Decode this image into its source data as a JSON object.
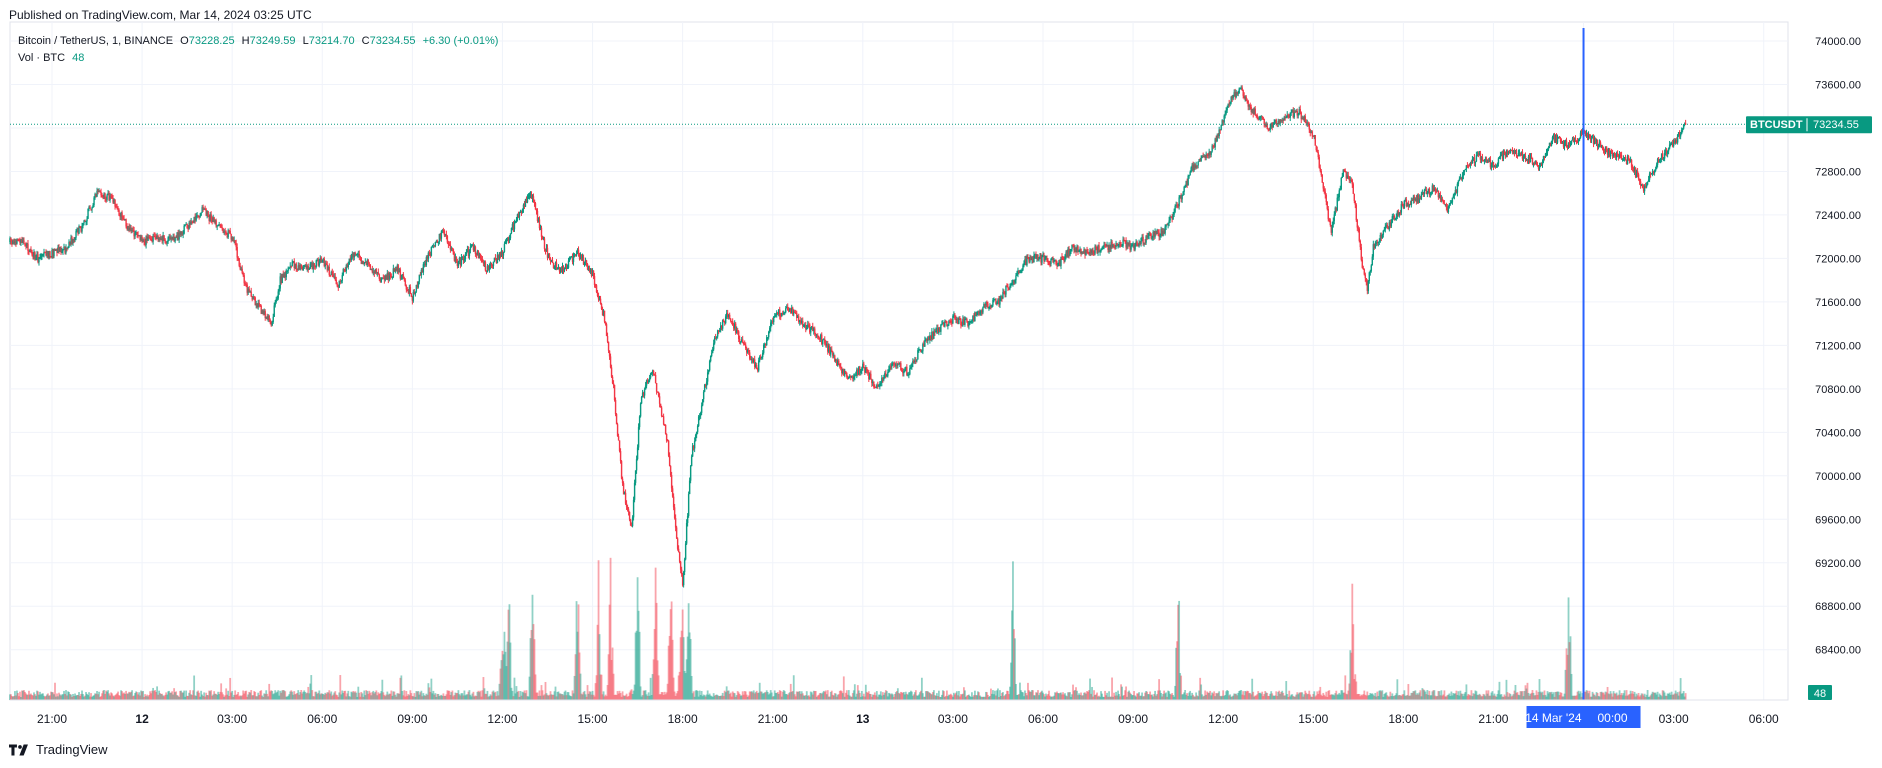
{
  "header": {
    "published_text": "Published on TradingView.com, Mar 14, 2024 03:25 UTC"
  },
  "legend": {
    "symbol": "Bitcoin / TetherUS, 1, BINANCE",
    "open_label": "O",
    "open": "73228.25",
    "high_label": "H",
    "high": "73249.59",
    "low_label": "L",
    "low": "73214.70",
    "close_label": "C",
    "close": "73234.55",
    "change": "+6.30 (+0.01%)",
    "volume_label": "Vol · BTC",
    "volume_value": "48"
  },
  "footer": {
    "brand": "TradingView"
  },
  "colors": {
    "up": "#089981",
    "down": "#f23645",
    "crosshair": "#2962ff",
    "grid": "#f0f3fa"
  },
  "chart_data": {
    "type": "candlestick",
    "symbol": "BTCUSDT",
    "interval": "1 minute",
    "ylim": [
      68100,
      74350
    ],
    "y_ticks": [
      74000,
      73600,
      73200,
      72800,
      72400,
      72000,
      71600,
      71200,
      70800,
      70400,
      70000,
      69600,
      69200,
      68800,
      68400
    ],
    "y_tick_labels": [
      "74000.00",
      "73600.00",
      "72800.00",
      "72400.00",
      "72000.00",
      "71600.00",
      "71200.00",
      "70800.00",
      "70400.00",
      "70000.00",
      "69600.00",
      "69200.00",
      "68800.00",
      "68400.00"
    ],
    "x_tick_labels": [
      "21:00",
      "12",
      "03:00",
      "06:00",
      "09:00",
      "12:00",
      "15:00",
      "18:00",
      "21:00",
      "13",
      "03:00",
      "06:00",
      "09:00",
      "12:00",
      "15:00",
      "18:00",
      "21:00",
      "00:00",
      "03:00",
      "06:00"
    ],
    "x_tick_hours": [
      0,
      3,
      6,
      9,
      12,
      15,
      18,
      21,
      24,
      27,
      30,
      33,
      36,
      39,
      42,
      45,
      48,
      51,
      54,
      57
    ],
    "x_start_hours_before_first_tick": 1.0,
    "last_data_hour": 54.42,
    "price_path": [
      [
        -1.0,
        72150
      ],
      [
        -0.5,
        72000
      ],
      [
        0.0,
        72050
      ],
      [
        0.5,
        72100
      ],
      [
        1.0,
        72300
      ],
      [
        1.5,
        72600
      ],
      [
        2.0,
        72550
      ],
      [
        2.5,
        72300
      ],
      [
        3.0,
        72150
      ],
      [
        3.5,
        72200
      ],
      [
        4.0,
        72150
      ],
      [
        4.5,
        72300
      ],
      [
        5.0,
        72450
      ],
      [
        5.5,
        72300
      ],
      [
        6.0,
        72200
      ],
      [
        6.5,
        71700
      ],
      [
        7.0,
        71500
      ],
      [
        7.3,
        71400
      ],
      [
        7.6,
        71800
      ],
      [
        8.0,
        71950
      ],
      [
        8.5,
        71900
      ],
      [
        9.0,
        72000
      ],
      [
        9.5,
        71750
      ],
      [
        10.0,
        72050
      ],
      [
        10.5,
        71950
      ],
      [
        11.0,
        71800
      ],
      [
        11.5,
        71900
      ],
      [
        12.0,
        71650
      ],
      [
        12.5,
        72000
      ],
      [
        13.0,
        72250
      ],
      [
        13.5,
        71950
      ],
      [
        14.0,
        72100
      ],
      [
        14.5,
        71900
      ],
      [
        15.0,
        72050
      ],
      [
        15.5,
        72400
      ],
      [
        16.0,
        72600
      ],
      [
        16.3,
        72200
      ],
      [
        16.6,
        71950
      ],
      [
        17.0,
        71900
      ],
      [
        17.5,
        72050
      ],
      [
        18.0,
        71850
      ],
      [
        18.4,
        71450
      ],
      [
        18.7,
        70800
      ],
      [
        19.0,
        69900
      ],
      [
        19.3,
        69500
      ],
      [
        19.6,
        70700
      ],
      [
        20.0,
        71000
      ],
      [
        20.5,
        70300
      ],
      [
        20.8,
        69400
      ],
      [
        21.0,
        69000
      ],
      [
        21.3,
        70200
      ],
      [
        21.6,
        70600
      ],
      [
        22.0,
        71200
      ],
      [
        22.5,
        71500
      ],
      [
        23.0,
        71200
      ],
      [
        23.5,
        71000
      ],
      [
        24.0,
        71450
      ],
      [
        24.5,
        71550
      ],
      [
        25.0,
        71400
      ],
      [
        25.5,
        71300
      ],
      [
        26.0,
        71100
      ],
      [
        26.5,
        70900
      ],
      [
        27.0,
        71000
      ],
      [
        27.5,
        70800
      ],
      [
        28.0,
        71050
      ],
      [
        28.5,
        70950
      ],
      [
        29.0,
        71200
      ],
      [
        29.5,
        71350
      ],
      [
        30.0,
        71450
      ],
      [
        30.5,
        71400
      ],
      [
        31.0,
        71550
      ],
      [
        31.5,
        71600
      ],
      [
        32.0,
        71800
      ],
      [
        32.5,
        72000
      ],
      [
        33.0,
        72000
      ],
      [
        33.5,
        71950
      ],
      [
        34.0,
        72100
      ],
      [
        34.5,
        72050
      ],
      [
        35.0,
        72100
      ],
      [
        35.5,
        72150
      ],
      [
        36.0,
        72100
      ],
      [
        36.5,
        72200
      ],
      [
        37.0,
        72250
      ],
      [
        37.5,
        72500
      ],
      [
        38.0,
        72850
      ],
      [
        38.5,
        72950
      ],
      [
        38.8,
        73100
      ],
      [
        39.2,
        73450
      ],
      [
        39.6,
        73550
      ],
      [
        40.0,
        73350
      ],
      [
        40.5,
        73200
      ],
      [
        41.0,
        73300
      ],
      [
        41.5,
        73350
      ],
      [
        42.0,
        73150
      ],
      [
        42.3,
        72700
      ],
      [
        42.6,
        72250
      ],
      [
        43.0,
        72800
      ],
      [
        43.3,
        72700
      ],
      [
        43.6,
        72000
      ],
      [
        43.8,
        71700
      ],
      [
        44.0,
        72100
      ],
      [
        44.5,
        72300
      ],
      [
        45.0,
        72500
      ],
      [
        45.5,
        72550
      ],
      [
        46.0,
        72650
      ],
      [
        46.5,
        72450
      ],
      [
        47.0,
        72800
      ],
      [
        47.5,
        72950
      ],
      [
        48.0,
        72850
      ],
      [
        48.5,
        73000
      ],
      [
        49.0,
        72950
      ],
      [
        49.5,
        72850
      ],
      [
        50.0,
        73100
      ],
      [
        50.5,
        73050
      ],
      [
        51.0,
        73150
      ],
      [
        51.5,
        73050
      ],
      [
        52.0,
        72950
      ],
      [
        52.5,
        72900
      ],
      [
        53.0,
        72650
      ],
      [
        53.5,
        72900
      ],
      [
        54.0,
        73050
      ],
      [
        54.42,
        73235
      ]
    ],
    "volume_spike_hours": [
      15.0,
      15.2,
      17.5,
      18.2,
      18.6,
      19.5,
      20.1,
      20.6,
      21.0,
      21.2,
      16.0,
      32.0,
      37.5,
      43.3,
      50.5
    ],
    "last_price_label": "BTCUSDT",
    "last_price": "73234.55",
    "last_volume": "48",
    "crosshair_date_label": "14 Mar '24",
    "crosshair_time_label": "00:00",
    "crosshair_hour": 51.0
  }
}
